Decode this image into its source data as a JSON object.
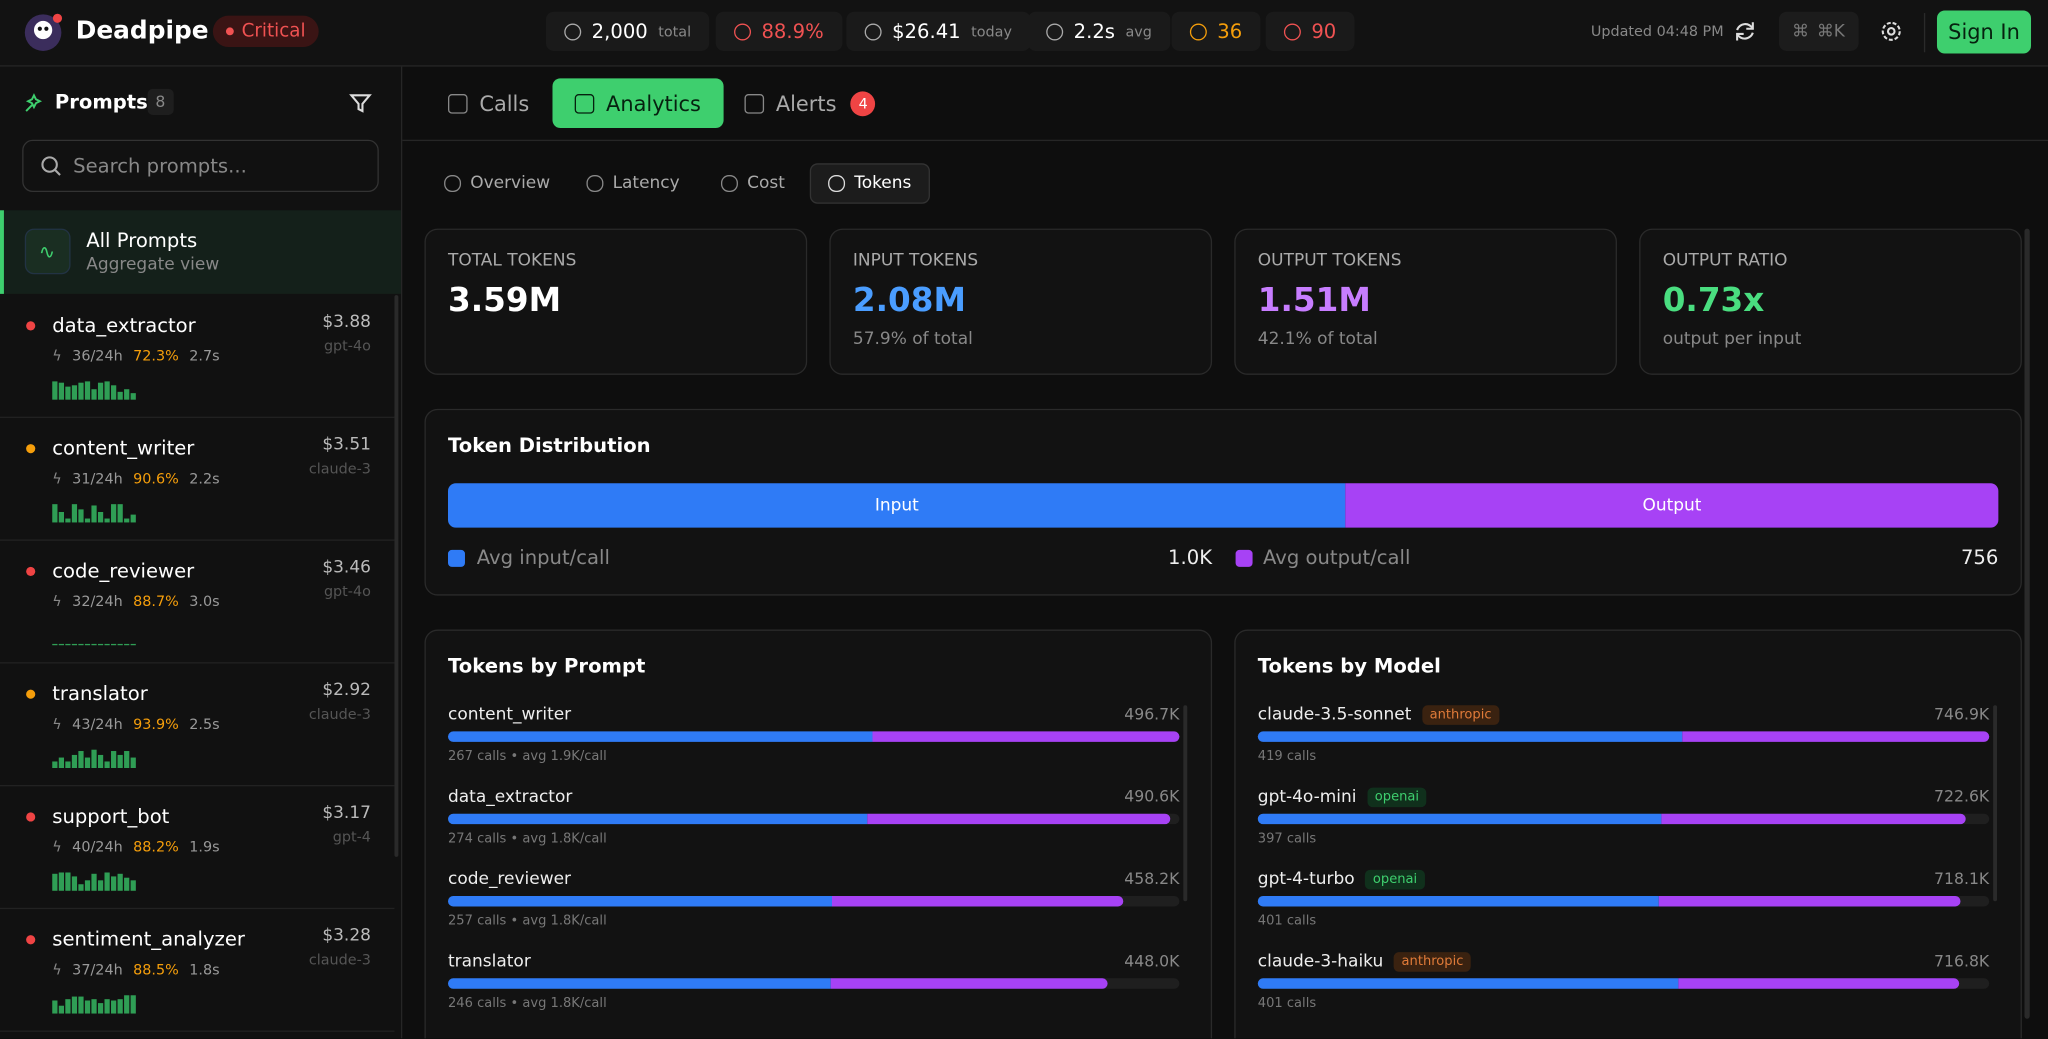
{
  "header": {
    "brand": "Deadpipe",
    "status": "Critical",
    "stats": [
      {
        "value": "2,000",
        "unit": "total",
        "color": "#ffffff"
      },
      {
        "value": "88.9%",
        "color": "#f05252"
      },
      {
        "value": "$26.41",
        "unit": "today",
        "color": "#ffffff"
      },
      {
        "value": "2.2s",
        "unit": "avg",
        "color": "#ffffff"
      },
      {
        "value": "36",
        "color": "#f59e0b"
      },
      {
        "value": "90",
        "color": "#f05252"
      }
    ],
    "updated": "Updated 04:48 PM",
    "shortcut": "⌘K",
    "sign_in": "Sign In"
  },
  "sidebar": {
    "title": "Prompts",
    "count": "8",
    "search_placeholder": "Search prompts...",
    "all": {
      "title": "All Prompts",
      "subtitle": "Aggregate view"
    },
    "prompts": [
      {
        "name": "data_extractor",
        "dot_color": "#ef4444",
        "calls": "36/24h",
        "rate": "72.3%",
        "latency": "2.7s",
        "cost": "$3.88",
        "model": "gpt-4o",
        "spark": [
          9,
          8,
          6,
          7,
          8,
          9,
          5,
          8,
          9,
          7,
          4,
          5,
          3
        ]
      },
      {
        "name": "content_writer",
        "dot_color": "#f59e0b",
        "calls": "31/24h",
        "rate": "90.6%",
        "latency": "2.2s",
        "cost": "$3.51",
        "model": "claude-3",
        "spark": [
          9,
          5,
          2,
          9,
          6,
          2,
          8,
          5,
          2,
          9,
          9,
          2,
          4
        ]
      },
      {
        "name": "code_reviewer",
        "dot_color": "#ef4444",
        "calls": "32/24h",
        "rate": "88.7%",
        "latency": "3.0s",
        "cost": "$3.46",
        "model": "gpt-4o",
        "spark": [
          0,
          0,
          0,
          0,
          0,
          0,
          0,
          0,
          0,
          0,
          0,
          0,
          0
        ]
      },
      {
        "name": "translator",
        "dot_color": "#f59e0b",
        "calls": "43/24h",
        "rate": "93.9%",
        "latency": "2.5s",
        "cost": "$2.92",
        "model": "claude-3",
        "spark": [
          3,
          5,
          3,
          6,
          8,
          5,
          9,
          6,
          3,
          8,
          6,
          8,
          5
        ]
      },
      {
        "name": "support_bot",
        "dot_color": "#ef4444",
        "calls": "40/24h",
        "rate": "88.2%",
        "latency": "1.9s",
        "cost": "$3.17",
        "model": "gpt-4",
        "spark": [
          8,
          9,
          9,
          7,
          3,
          5,
          8,
          5,
          9,
          7,
          8,
          6,
          5
        ]
      },
      {
        "name": "sentiment_analyzer",
        "dot_color": "#ef4444",
        "calls": "37/24h",
        "rate": "88.5%",
        "latency": "1.8s",
        "cost": "$3.28",
        "model": "claude-3",
        "spark": [
          6,
          4,
          7,
          8,
          8,
          6,
          7,
          5,
          7,
          6,
          7,
          9,
          9
        ]
      }
    ]
  },
  "tabs": [
    "Calls",
    "Analytics",
    "Alerts"
  ],
  "alerts_badge": "4",
  "subtabs": [
    "Overview",
    "Latency",
    "Cost",
    "Tokens"
  ],
  "cards": [
    {
      "label": "TOTAL TOKENS",
      "value": "3.59M",
      "color": "#ffffff"
    },
    {
      "label": "INPUT TOKENS",
      "value": "2.08M",
      "sub": "57.9% of total",
      "color": "#4a9dff"
    },
    {
      "label": "OUTPUT TOKENS",
      "value": "1.51M",
      "sub": "42.1% of total",
      "color": "#c77dff"
    },
    {
      "label": "OUTPUT RATIO",
      "value": "0.73x",
      "sub": "output per input",
      "color": "#4ade80"
    }
  ],
  "distribution": {
    "title": "Token Distribution",
    "input_label": "Input",
    "output_label": "Output",
    "input_pct": 57.9,
    "avg_input_label": "Avg input/call",
    "avg_input": "1.0K",
    "avg_output_label": "Avg output/call",
    "avg_output": "756"
  },
  "by_prompt": {
    "title": "Tokens by Prompt",
    "rows": [
      {
        "name": "content_writer",
        "value": 496700,
        "value_label": "496.7K",
        "sub": "267 calls • avg 1.9K/call",
        "input_pct": 58
      },
      {
        "name": "data_extractor",
        "value": 490600,
        "value_label": "490.6K",
        "sub": "274 calls • avg 1.8K/call",
        "input_pct": 58
      },
      {
        "name": "code_reviewer",
        "value": 458200,
        "value_label": "458.2K",
        "sub": "257 calls • avg 1.8K/call",
        "input_pct": 57
      },
      {
        "name": "translator",
        "value": 448000,
        "value_label": "448.0K",
        "sub": "246 calls • avg 1.8K/call",
        "input_pct": 58
      }
    ]
  },
  "by_model": {
    "title": "Tokens by Model",
    "rows": [
      {
        "name": "claude-3.5-sonnet",
        "provider": "anthropic",
        "value": 746900,
        "value_label": "746.9K",
        "sub": "419 calls",
        "input_pct": 58
      },
      {
        "name": "gpt-4o-mini",
        "provider": "openai",
        "value": 722600,
        "value_label": "722.6K",
        "sub": "397 calls",
        "input_pct": 57
      },
      {
        "name": "gpt-4-turbo",
        "provider": "openai",
        "value": 718100,
        "value_label": "718.1K",
        "sub": "401 calls",
        "input_pct": 57
      },
      {
        "name": "claude-3-haiku",
        "provider": "anthropic",
        "value": 716800,
        "value_label": "716.8K",
        "sub": "401 calls",
        "input_pct": 60
      }
    ]
  }
}
